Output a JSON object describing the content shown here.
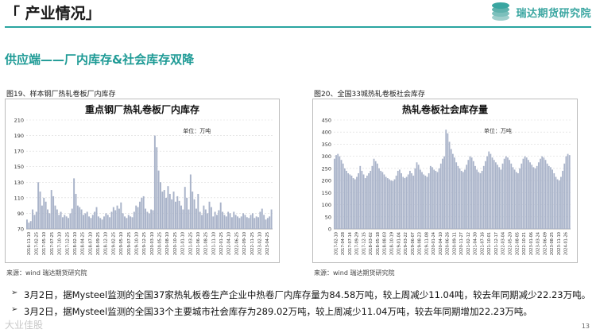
{
  "header": {
    "title": "「 产业情况」",
    "brand": "瑞达期货研究院"
  },
  "subtitle": "供应端——厂内库存&社会库存双降",
  "left": {
    "fig_label": "图19、样本钢厂热轧卷板厂内库存",
    "source": "来源：wind  瑞达期货研究院"
  },
  "right": {
    "fig_label": "图20、全国33城热轧卷板社会库存",
    "source": "来源：wind  瑞达期货研究院"
  },
  "chart_data": [
    {
      "type": "area",
      "title": "重点钢厂热轧卷板厂内库存",
      "unit": "单位：万吨",
      "ylim": [
        70,
        210
      ],
      "yticks": [
        70,
        90,
        110,
        130,
        150,
        170,
        190,
        210
      ],
      "color": "#a9b3c9",
      "xticklabels": [
        "2016-11-10",
        "2017-02-25",
        "2017-05-10",
        "2017-07-25",
        "2017-10-10",
        "2017-12-25",
        "2018-02-10",
        "2018-04-25",
        "2018-07-10",
        "2018-09-25",
        "2018-12-10",
        "2019-02-25",
        "2019-05-10",
        "2019-07-25",
        "2019-10-10",
        "2019-12-25",
        "2020-03-10",
        "2020-05-25",
        "2020-08-10",
        "2020-10-25",
        "2021-01-10",
        "2021-03-25",
        "2021-06-10",
        "2021-08-25",
        "2021-11-10",
        "2022-01-25",
        "2022-04-10",
        "2022-06-25",
        "2022-09-10",
        "2022-11-25",
        "2023-02-10",
        "2023-04-25"
      ],
      "values": [
        82,
        78,
        80,
        95,
        88,
        92,
        130,
        118,
        100,
        110,
        105,
        95,
        90,
        120,
        112,
        100,
        95,
        88,
        92,
        85,
        88,
        86,
        84,
        90,
        96,
        135,
        115,
        100,
        98,
        95,
        88,
        90,
        92,
        86,
        84,
        88,
        92,
        98,
        86,
        84,
        82,
        86,
        90,
        88,
        85,
        92,
        98,
        94,
        100,
        96,
        104,
        90,
        86,
        84,
        88,
        86,
        85,
        92,
        100,
        98,
        105,
        110,
        112,
        96,
        92,
        90,
        95,
        94,
        190,
        175,
        145,
        130,
        118,
        120,
        110,
        125,
        115,
        108,
        118,
        105,
        112,
        106,
        100,
        95,
        124,
        110,
        95,
        140,
        118,
        108,
        96,
        115,
        92,
        88,
        100,
        95,
        90,
        105,
        98,
        86,
        92,
        88,
        94,
        104,
        92,
        88,
        86,
        92,
        90,
        85,
        92,
        88,
        86,
        84,
        86,
        90,
        88,
        85,
        84,
        88,
        90,
        84,
        86,
        85,
        92,
        96,
        88,
        82,
        84,
        86,
        95
      ]
    },
    {
      "type": "area",
      "title": "热轧卷板社会库存量",
      "unit": "单位：万吨",
      "ylim": [
        0,
        450
      ],
      "yticks": [
        0,
        50,
        100,
        150,
        200,
        250,
        300,
        350,
        400,
        450
      ],
      "color": "#a9b3c9",
      "xticklabels": [
        "2017-02-10",
        "2017-04-28",
        "2017-07-14",
        "2017-09-29",
        "2017-12-15",
        "2018-03-02",
        "2018-05-18",
        "2018-08-03",
        "2018-10-19",
        "2019-01-04",
        "2019-03-22",
        "2019-06-07",
        "2019-08-23",
        "2019-11-08",
        "2020-01-24",
        "2020-04-10",
        "2020-06-26",
        "2020-09-11",
        "2020-11-27",
        "2021-02-12",
        "2021-04-30",
        "2021-07-16",
        "2021-10-01",
        "2021-12-17",
        "2022-03-04",
        "2022-05-20",
        "2022-08-05",
        "2022-10-21",
        "2023-01-06",
        "2023-03-24",
        "2023-06-09",
        "2023-08-25",
        "2023-11-10",
        "2024-01-26"
      ],
      "values": [
        290,
        305,
        310,
        300,
        285,
        270,
        250,
        240,
        230,
        225,
        220,
        210,
        205,
        215,
        230,
        260,
        240,
        225,
        210,
        220,
        230,
        240,
        260,
        290,
        280,
        270,
        250,
        240,
        235,
        225,
        215,
        210,
        205,
        200,
        198,
        205,
        220,
        240,
        245,
        230,
        215,
        210,
        215,
        225,
        240,
        230,
        220,
        250,
        275,
        265,
        245,
        235,
        225,
        220,
        215,
        230,
        260,
        255,
        245,
        240,
        235,
        250,
        270,
        290,
        300,
        410,
        395,
        360,
        330,
        310,
        295,
        275,
        260,
        250,
        240,
        235,
        245,
        265,
        285,
        300,
        295,
        280,
        260,
        245,
        235,
        230,
        240,
        260,
        280,
        300,
        320,
        310,
        295,
        285,
        275,
        265,
        255,
        245,
        270,
        290,
        300,
        295,
        285,
        270,
        255,
        245,
        235,
        230,
        250,
        270,
        290,
        300,
        295,
        285,
        275,
        265,
        255,
        250,
        260,
        275,
        290,
        300,
        295,
        285,
        270,
        260,
        255,
        245,
        230,
        215,
        205,
        200,
        215,
        240,
        270,
        300,
        310,
        305
      ]
    }
  ],
  "bullets": [
    "3月2日，据Mysteel监测的全国37家热轧板卷生产企业中热卷厂内库存量为84.58万吨，较上周减少11.04吨，较去年同期减少22.23万吨。",
    "3月2日，据Mysteel监测的全国33个主要城市社会库存为289.02万吨，较上周减少11.04万吨，较去年同期增加22.23万吨。"
  ],
  "watermark": "大业佳股",
  "page_number": "13"
}
